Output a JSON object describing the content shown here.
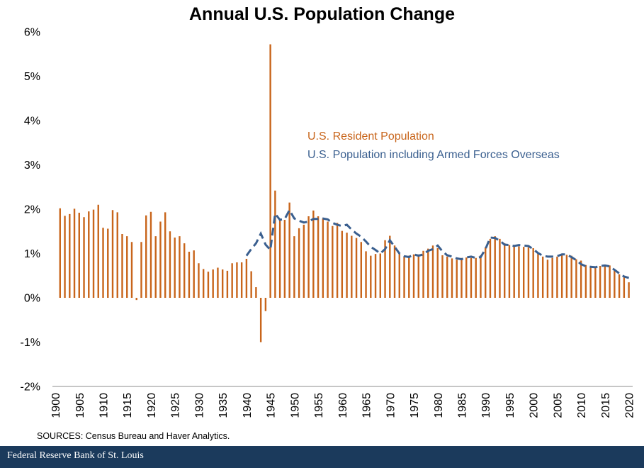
{
  "colors": {
    "bars": "#c8651b",
    "line": "#3a5f8f",
    "footer": "#1b3a5c"
  },
  "footer": {
    "brand": "Federal Reserve Bank of St. Louis"
  },
  "source_note": "SOURCES: Census Bureau and Haver Analytics.",
  "chart_data": {
    "type": "bar",
    "title": "Annual U.S. Population Change",
    "ylim": [
      -2,
      6
    ],
    "yticks": [
      -2,
      -1,
      0,
      1,
      2,
      3,
      4,
      5,
      6
    ],
    "ytick_labels": [
      "-2%",
      "-1%",
      "0%",
      "1%",
      "2%",
      "3%",
      "4%",
      "5%",
      "6%"
    ],
    "xticks": [
      1900,
      1905,
      1910,
      1915,
      1920,
      1925,
      1930,
      1935,
      1940,
      1945,
      1950,
      1955,
      1960,
      1965,
      1970,
      1975,
      1980,
      1985,
      1990,
      1995,
      2000,
      2005,
      2010,
      2015,
      2020
    ],
    "xtick_labels": [
      "1900",
      "1905",
      "1910",
      "1915",
      "1920",
      "1925",
      "1930",
      "1935",
      "1940",
      "1945",
      "1950",
      "1955",
      "1960",
      "1965",
      "1970",
      "1975",
      "1980",
      "1985",
      "1990",
      "1995",
      "2000",
      "2005",
      "2010",
      "2015",
      "2020"
    ],
    "series": [
      {
        "name": "U.S. Resident Population",
        "kind": "bar",
        "x_start": 1901,
        "values": [
          2.02,
          1.85,
          1.89,
          2.01,
          1.92,
          1.82,
          1.95,
          1.99,
          2.1,
          1.58,
          1.56,
          1.98,
          1.93,
          1.44,
          1.39,
          1.26,
          -0.05,
          1.26,
          1.86,
          1.94,
          1.39,
          1.72,
          1.93,
          1.5,
          1.36,
          1.39,
          1.23,
          1.04,
          1.07,
          0.78,
          0.65,
          0.59,
          0.64,
          0.68,
          0.64,
          0.61,
          0.78,
          0.8,
          0.8,
          0.88,
          0.6,
          0.24,
          -1.0,
          -0.3,
          5.72,
          2.42,
          1.76,
          1.76,
          2.15,
          1.39,
          1.57,
          1.65,
          1.84,
          1.97,
          1.84,
          1.79,
          1.72,
          1.62,
          1.69,
          1.51,
          1.47,
          1.4,
          1.35,
          1.26,
          1.05,
          0.95,
          0.99,
          1.0,
          1.3,
          1.4,
          1.18,
          1.0,
          0.92,
          0.95,
          0.98,
          0.98,
          1.06,
          1.11,
          1.18,
          1.12,
          0.96,
          0.93,
          0.89,
          0.86,
          0.9,
          0.91,
          0.9,
          0.9,
          0.96,
          1.14,
          1.33,
          1.39,
          1.33,
          1.23,
          1.19,
          1.17,
          1.16,
          1.15,
          1.14,
          1.12,
          0.99,
          0.93,
          0.86,
          0.9,
          0.93,
          0.96,
          0.97,
          0.95,
          0.87,
          0.84,
          0.74,
          0.71,
          0.7,
          0.72,
          0.73,
          0.73,
          0.64,
          0.53,
          0.46,
          0.35
        ]
      },
      {
        "name": "U.S. Population including Armed Forces Overseas",
        "kind": "line",
        "style": "dashed",
        "points": [
          [
            1940,
            0.95
          ],
          [
            1941,
            1.1
          ],
          [
            1942,
            1.23
          ],
          [
            1943,
            1.45
          ],
          [
            1944,
            1.2
          ],
          [
            1945,
            1.08
          ],
          [
            1946,
            1.9
          ],
          [
            1947,
            1.76
          ],
          [
            1948,
            1.78
          ],
          [
            1949,
            1.98
          ],
          [
            1950,
            1.79
          ],
          [
            1951,
            1.74
          ],
          [
            1952,
            1.7
          ],
          [
            1953,
            1.72
          ],
          [
            1954,
            1.78
          ],
          [
            1955,
            1.78
          ],
          [
            1956,
            1.79
          ],
          [
            1957,
            1.77
          ],
          [
            1958,
            1.69
          ],
          [
            1959,
            1.65
          ],
          [
            1960,
            1.62
          ],
          [
            1961,
            1.65
          ],
          [
            1962,
            1.54
          ],
          [
            1963,
            1.45
          ],
          [
            1964,
            1.38
          ],
          [
            1965,
            1.27
          ],
          [
            1966,
            1.15
          ],
          [
            1967,
            1.08
          ],
          [
            1968,
            1.0
          ],
          [
            1969,
            1.1
          ],
          [
            1970,
            1.3
          ],
          [
            1971,
            1.15
          ],
          [
            1972,
            1.0
          ],
          [
            1973,
            0.94
          ],
          [
            1974,
            0.92
          ],
          [
            1975,
            0.98
          ],
          [
            1976,
            0.95
          ],
          [
            1977,
            0.98
          ],
          [
            1978,
            1.06
          ],
          [
            1979,
            1.1
          ],
          [
            1980,
            1.18
          ],
          [
            1981,
            1.05
          ],
          [
            1982,
            0.96
          ],
          [
            1983,
            0.93
          ],
          [
            1984,
            0.89
          ],
          [
            1985,
            0.87
          ],
          [
            1986,
            0.91
          ],
          [
            1987,
            0.93
          ],
          [
            1988,
            0.9
          ],
          [
            1989,
            0.92
          ],
          [
            1990,
            1.1
          ],
          [
            1991,
            1.36
          ],
          [
            1992,
            1.35
          ],
          [
            1993,
            1.29
          ],
          [
            1994,
            1.2
          ],
          [
            1995,
            1.19
          ],
          [
            1996,
            1.17
          ],
          [
            1997,
            1.19
          ],
          [
            1998,
            1.18
          ],
          [
            1999,
            1.17
          ],
          [
            2000,
            1.1
          ],
          [
            2001,
            1.01
          ],
          [
            2002,
            0.95
          ],
          [
            2003,
            0.93
          ],
          [
            2004,
            0.93
          ],
          [
            2005,
            0.94
          ],
          [
            2006,
            0.98
          ],
          [
            2007,
            0.98
          ],
          [
            2008,
            0.92
          ],
          [
            2009,
            0.85
          ],
          [
            2010,
            0.76
          ],
          [
            2011,
            0.71
          ],
          [
            2012,
            0.7
          ],
          [
            2013,
            0.69
          ],
          [
            2014,
            0.72
          ],
          [
            2015,
            0.73
          ],
          [
            2016,
            0.71
          ],
          [
            2017,
            0.63
          ],
          [
            2018,
            0.55
          ],
          [
            2019,
            0.48
          ],
          [
            2020,
            0.45
          ]
        ]
      }
    ],
    "legend": [
      "U.S. Resident Population",
      "U.S. Population including Armed Forces Overseas"
    ],
    "legend_position": "top-right",
    "grid": false
  }
}
